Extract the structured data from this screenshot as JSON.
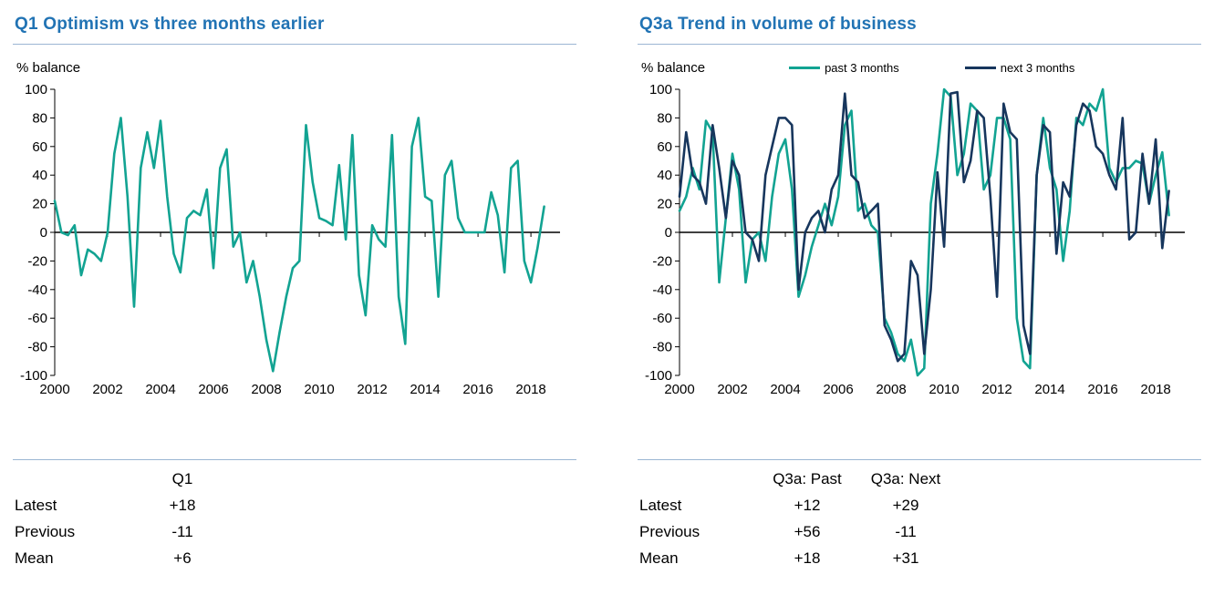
{
  "colors": {
    "teal": "#12a392",
    "navy": "#17365d",
    "title_blue": "#2173b4",
    "rule_blue": "#9bb6d3",
    "axis": "#000000"
  },
  "left_panel": {
    "title": "Q1 Optimism vs three months earlier",
    "ylabel": "% balance",
    "table": {
      "col_headers": [
        "Q1"
      ],
      "rows": [
        {
          "label": "Latest",
          "values": [
            "+18"
          ]
        },
        {
          "label": "Previous",
          "values": [
            "-11"
          ]
        },
        {
          "label": "Mean",
          "values": [
            "+6"
          ]
        }
      ]
    }
  },
  "right_panel": {
    "title": "Q3a Trend in volume of business",
    "ylabel": "% balance",
    "legend": [
      "past 3 months",
      "next 3 months"
    ],
    "table": {
      "col_headers": [
        "Q3a: Past",
        "Q3a: Next"
      ],
      "rows": [
        {
          "label": "Latest",
          "values": [
            "+12",
            "+29"
          ]
        },
        {
          "label": "Previous",
          "values": [
            "+56",
            "-11"
          ]
        },
        {
          "label": "Mean",
          "values": [
            "+18",
            "+31"
          ]
        }
      ]
    }
  },
  "chart_data": [
    {
      "type": "line",
      "title": "Q1 Optimism vs three months earlier",
      "xlabel": "",
      "ylabel": "% balance",
      "x_start": 2000,
      "x_step": 0.25,
      "xticks": [
        2000,
        2002,
        2004,
        2006,
        2008,
        2010,
        2012,
        2014,
        2016,
        2018
      ],
      "ylim": [
        -100,
        100
      ],
      "yticks": [
        -100,
        -80,
        -60,
        -40,
        -20,
        0,
        20,
        40,
        60,
        80,
        100
      ],
      "grid": false,
      "legend_position": "none",
      "series": [
        {
          "name": "Q1 optimism",
          "color_key": "teal",
          "values": [
            22,
            0,
            -2,
            5,
            -30,
            -12,
            -15,
            -20,
            0,
            55,
            80,
            25,
            -52,
            45,
            70,
            45,
            78,
            25,
            -15,
            -28,
            10,
            15,
            12,
            30,
            -25,
            45,
            58,
            -10,
            0,
            -35,
            -20,
            -45,
            -75,
            -97,
            -70,
            -45,
            -25,
            -20,
            75,
            35,
            10,
            8,
            5,
            47,
            -5,
            68,
            -30,
            -58,
            5,
            -5,
            -10,
            68,
            -45,
            -78,
            60,
            80,
            25,
            22,
            -45,
            40,
            50,
            10,
            0,
            0,
            0,
            0,
            28,
            12,
            -28,
            45,
            50,
            -20,
            -35,
            -11,
            18
          ]
        }
      ]
    },
    {
      "type": "line",
      "title": "Q3a Trend in volume of business",
      "xlabel": "",
      "ylabel": "% balance",
      "x_start": 2000,
      "x_step": 0.25,
      "xticks": [
        2000,
        2002,
        2004,
        2006,
        2008,
        2010,
        2012,
        2014,
        2016,
        2018
      ],
      "ylim": [
        -100,
        100
      ],
      "yticks": [
        -100,
        -80,
        -60,
        -40,
        -20,
        0,
        20,
        40,
        60,
        80,
        100
      ],
      "grid": false,
      "legend_position": "top",
      "series": [
        {
          "name": "past 3 months",
          "color_key": "teal",
          "values": [
            15,
            25,
            45,
            30,
            78,
            70,
            -35,
            10,
            55,
            30,
            -35,
            -5,
            0,
            -20,
            25,
            55,
            65,
            30,
            -45,
            -30,
            -10,
            5,
            20,
            5,
            25,
            75,
            85,
            15,
            20,
            5,
            0,
            -60,
            -70,
            -85,
            -90,
            -75,
            -100,
            -95,
            20,
            55,
            100,
            95,
            40,
            55,
            90,
            85,
            30,
            40,
            80,
            80,
            65,
            -60,
            -90,
            -95,
            40,
            80,
            45,
            30,
            -20,
            15,
            80,
            75,
            90,
            85,
            100,
            45,
            35,
            45,
            45,
            50,
            48,
            20,
            40,
            56,
            12
          ]
        },
        {
          "name": "next 3 months",
          "color_key": "navy",
          "values": [
            25,
            70,
            40,
            35,
            20,
            75,
            45,
            10,
            50,
            40,
            0,
            -5,
            -20,
            40,
            60,
            80,
            80,
            75,
            -40,
            0,
            10,
            15,
            0,
            30,
            40,
            97,
            40,
            35,
            10,
            15,
            20,
            -65,
            -75,
            -90,
            -85,
            -20,
            -30,
            -85,
            -40,
            42,
            -10,
            97,
            98,
            35,
            50,
            85,
            80,
            25,
            -45,
            90,
            70,
            65,
            -65,
            -85,
            40,
            75,
            70,
            -15,
            35,
            25,
            75,
            90,
            85,
            60,
            55,
            40,
            30,
            80,
            -5,
            0,
            55,
            20,
            65,
            -11,
            29
          ]
        }
      ]
    }
  ]
}
